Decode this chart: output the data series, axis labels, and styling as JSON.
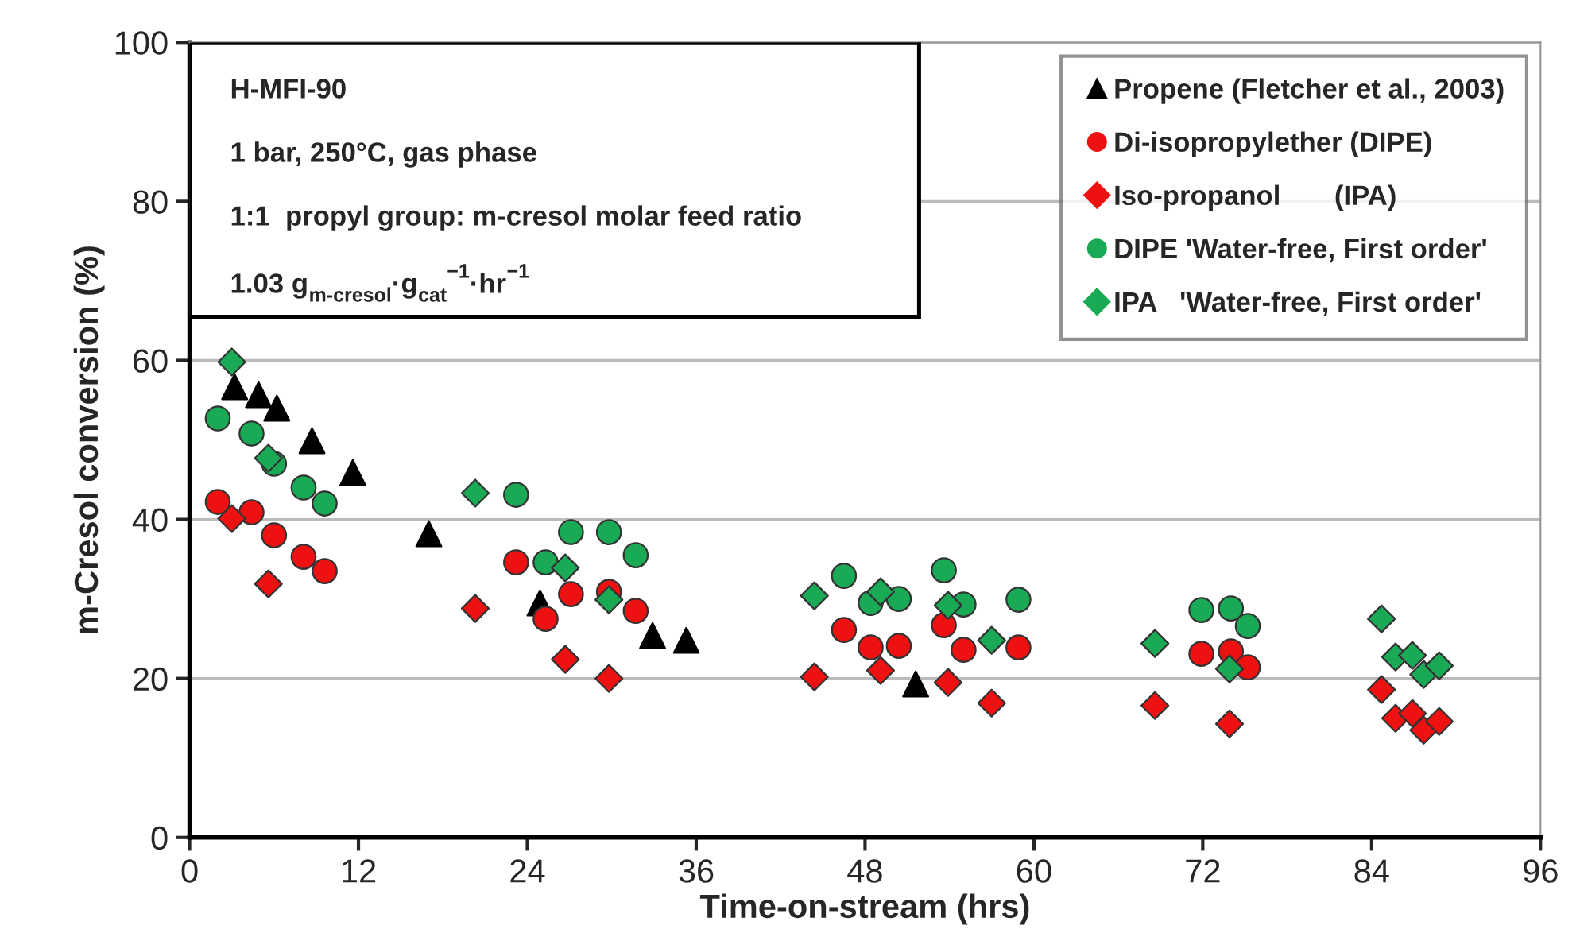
{
  "chart_data": {
    "type": "scatter",
    "xlabel": "Time-on-stream (hrs)",
    "ylabel": "m-Cresol conversion (%)",
    "xlim": [
      0,
      96
    ],
    "xticks": [
      0,
      12,
      24,
      36,
      48,
      60,
      72,
      84,
      96
    ],
    "ylim": [
      0,
      100
    ],
    "yticks": [
      0,
      20,
      40,
      60,
      80,
      100
    ],
    "grid": "y",
    "legend": "top right",
    "annotations": [
      "H-MFI-90",
      "1 bar, 250°C, gas phase",
      "1:1  propyl group: m-cresol molar feed ratio",
      "1.03 g$_{m-cresol}$·g$_{cat}$$^{−1}$·hr$^{−1}$"
    ],
    "series": [
      {
        "name": "Propene (Fletcher et al., 2003)",
        "color": "#000000",
        "marker": "triangle",
        "x": [
          3.2,
          4.9,
          6.2,
          8.7,
          11.6,
          17.0,
          24.9,
          32.9,
          35.3,
          51.6
        ],
        "values": [
          56.7,
          55.7,
          54.0,
          49.9,
          45.9,
          38.2,
          29.5,
          25.4,
          24.8,
          19.3
        ]
      },
      {
        "name": "Di-isopropylether (DIPE)",
        "color": "#ee1111",
        "marker": "circle",
        "x": [
          2.0,
          4.4,
          6.0,
          8.1,
          9.6,
          23.2,
          25.3,
          27.1,
          29.8,
          31.7,
          46.5,
          48.4,
          50.4,
          53.6,
          55.0,
          58.9,
          71.9,
          74.0,
          75.2
        ],
        "values": [
          42.2,
          40.9,
          38.0,
          35.3,
          33.5,
          34.6,
          27.5,
          30.6,
          30.9,
          28.5,
          26.1,
          23.9,
          24.1,
          26.7,
          23.6,
          23.9,
          23.1,
          23.4,
          21.4
        ]
      },
      {
        "name": "Iso-propanol       (IPA)",
        "color": "#ee1111",
        "marker": "diamond",
        "x": [
          3.0,
          5.6,
          20.3,
          26.7,
          29.8,
          44.4,
          49.1,
          53.9,
          57.0,
          68.6,
          73.9,
          84.7,
          85.7,
          86.9,
          87.7,
          88.8
        ],
        "values": [
          40.1,
          31.9,
          28.8,
          22.4,
          20.0,
          20.2,
          21.0,
          19.5,
          16.9,
          16.6,
          14.3,
          18.6,
          15.0,
          15.6,
          13.5,
          14.6
        ]
      },
      {
        "name": "DIPE 'Water-free, First order'",
        "color": "#1aaa55",
        "marker": "circle",
        "x": [
          2.0,
          4.4,
          6.0,
          8.1,
          9.6,
          23.2,
          25.3,
          27.1,
          29.8,
          31.7,
          46.5,
          48.4,
          50.4,
          53.6,
          55.0,
          58.9,
          71.9,
          74.0,
          75.2
        ],
        "values": [
          52.7,
          50.8,
          47.0,
          44.0,
          42.0,
          43.1,
          34.6,
          38.4,
          38.4,
          35.5,
          32.9,
          29.5,
          30.0,
          33.6,
          29.3,
          29.9,
          28.6,
          28.8,
          26.6
        ]
      },
      {
        "name": "IPA   'Water-free, First order'",
        "color": "#1aaa55",
        "marker": "diamond",
        "x": [
          3.0,
          5.6,
          20.3,
          26.7,
          29.8,
          44.4,
          49.1,
          53.9,
          57.0,
          68.6,
          73.9,
          84.7,
          85.7,
          86.9,
          87.7,
          88.8
        ],
        "values": [
          59.8,
          47.7,
          43.3,
          33.9,
          29.9,
          30.4,
          30.9,
          29.2,
          24.8,
          24.4,
          21.2,
          27.5,
          22.7,
          22.9,
          20.5,
          21.6
        ]
      }
    ]
  }
}
